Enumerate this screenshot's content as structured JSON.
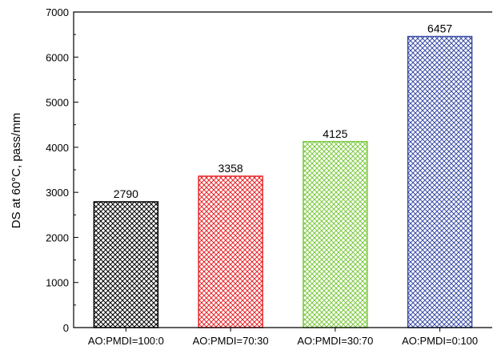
{
  "chart_data": {
    "type": "bar",
    "title": "",
    "xlabel": "",
    "ylabel": "DS at 60°C, pass/mm",
    "ylim": [
      0,
      7000
    ],
    "yticks": [
      0,
      1000,
      2000,
      3000,
      4000,
      5000,
      6000,
      7000
    ],
    "categories": [
      "AO:PMDI=100:0",
      "AO:PMDI=70:30",
      "AO:PMDI=30:70",
      "AO:PMDI=0:100"
    ],
    "values": [
      2790,
      3358,
      4125,
      6457
    ],
    "data_labels": [
      "2790",
      "3358",
      "4125",
      "6457"
    ],
    "bar_colors": [
      "#000000",
      "#e8262a",
      "#7ccb3f",
      "#3b4ea6"
    ],
    "bar_fill_pattern": "crosshatch",
    "grid": false,
    "legend": "none"
  }
}
